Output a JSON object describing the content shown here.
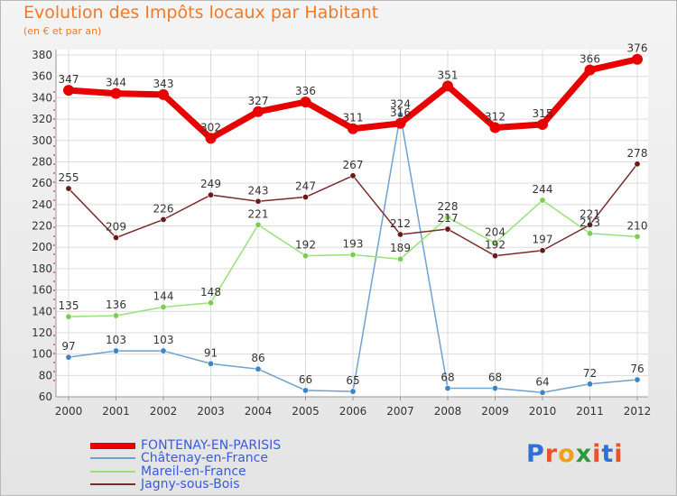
{
  "title": "Evolution des Impôts locaux par Habitant",
  "subtitle": "(en € et par an)",
  "logo": {
    "text": "Proxiti",
    "colors": [
      "#2f6fd6",
      "#e8542a",
      "#f0a020",
      "#2a9a3a",
      "#e8542a",
      "#2f6fd6",
      "#e8542a"
    ]
  },
  "chart_data": {
    "type": "line",
    "categories": [
      "2000",
      "2001",
      "2002",
      "2003",
      "2004",
      "2005",
      "2006",
      "2007",
      "2008",
      "2009",
      "2010",
      "2011",
      "2012"
    ],
    "ylim": [
      60,
      380
    ],
    "yticks": [
      "60",
      "80",
      "100",
      "120",
      "140",
      "160",
      "180",
      "200",
      "220",
      "240",
      "260",
      "280",
      "300",
      "320",
      "340",
      "360",
      "380"
    ],
    "grid": true,
    "legend_position": "bottom-left",
    "series": [
      {
        "name": "FONTENAY-EN-PARISIS",
        "color": "#e80000",
        "point_color": "#e80000",
        "width": 7,
        "values": [
          347,
          344,
          343,
          302,
          327,
          336,
          311,
          316,
          351,
          312,
          315,
          366,
          376
        ],
        "labels": [
          "347",
          "344",
          "343",
          "302",
          "327",
          "336",
          "311",
          "316",
          "351",
          "312",
          "315",
          "366",
          "376"
        ]
      },
      {
        "name": "Châtenay-en-France",
        "color": "#6fa0d0",
        "point_color": "#3b86c8",
        "width": 1.5,
        "values": [
          97,
          103,
          103,
          91,
          86,
          66,
          65,
          324,
          68,
          68,
          64,
          72,
          76
        ],
        "labels": [
          "97",
          "103",
          "103",
          "91",
          "86",
          "66",
          "65",
          "324",
          "68",
          "68",
          "64",
          "72",
          "76"
        ]
      },
      {
        "name": "Mareil-en-France",
        "color": "#99e07a",
        "point_color": "#7ccc52",
        "width": 1.5,
        "values": [
          135,
          136,
          144,
          148,
          221,
          192,
          193,
          189,
          228,
          204,
          244,
          213,
          210
        ],
        "labels": [
          "135",
          "136",
          "144",
          "148",
          "221",
          "192",
          "193",
          "189",
          "228",
          "204",
          "244",
          "213",
          "210"
        ]
      },
      {
        "name": "Jagny-sous-Bois",
        "color": "#7a2a2a",
        "point_color": "#6b1a1a",
        "width": 1.5,
        "values": [
          255,
          209,
          226,
          249,
          243,
          247,
          267,
          212,
          217,
          192,
          197,
          221,
          278
        ],
        "labels": [
          "255",
          "209",
          "226",
          "249",
          "243",
          "247",
          "267",
          "212",
          "217",
          "192",
          "197",
          "221",
          "278"
        ]
      }
    ]
  }
}
